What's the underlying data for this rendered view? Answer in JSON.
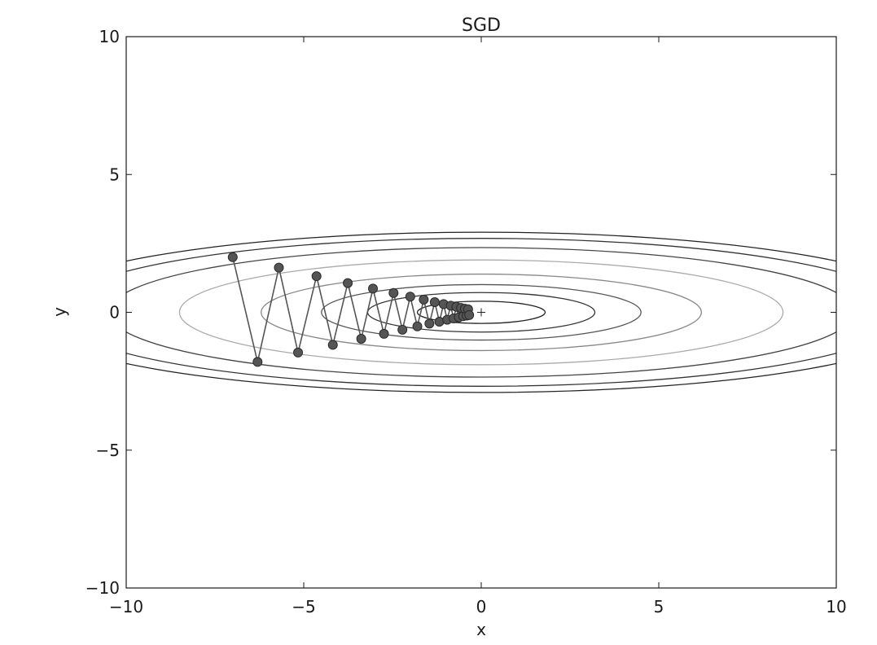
{
  "chart_data": {
    "type": "line",
    "title": "SGD",
    "xlabel": "x",
    "ylabel": "y",
    "xlim": [
      -10,
      10
    ],
    "ylim": [
      -10,
      10
    ],
    "xticks": [
      -10,
      -5,
      0,
      5,
      10
    ],
    "yticks": [
      -10,
      -5,
      0,
      5,
      10
    ],
    "xtick_labels": [
      "−10",
      "−5",
      "0",
      "5",
      "10"
    ],
    "ytick_labels": [
      "−10",
      "−5",
      "0",
      "5",
      "10"
    ],
    "grid": false,
    "legend": "none",
    "minimum_marker": [
      0,
      0
    ],
    "contours": {
      "function": "x^2/20 + y^2",
      "half_widths": [
        1.8,
        3.2,
        4.5,
        6.2,
        8.5,
        10.5,
        12.0,
        13.0
      ]
    },
    "series": [
      {
        "x": [
          -7.0,
          -6.3,
          -5.7,
          -5.16,
          -4.64,
          -4.18,
          -3.76,
          -3.38,
          -3.05,
          -2.74,
          -2.47,
          -2.22,
          -2.0,
          -1.8,
          -1.62,
          -1.46,
          -1.31,
          -1.18,
          -1.06,
          -0.96,
          -0.86,
          -0.78,
          -0.7,
          -0.63,
          -0.57,
          -0.51,
          -0.46,
          -0.41,
          -0.37,
          -0.34
        ],
        "y": [
          2.0,
          -1.8,
          1.62,
          -1.46,
          1.31,
          -1.18,
          1.06,
          -0.96,
          0.86,
          -0.78,
          0.7,
          -0.63,
          0.57,
          -0.51,
          0.46,
          -0.41,
          0.37,
          -0.34,
          0.3,
          -0.27,
          0.24,
          -0.22,
          0.2,
          -0.18,
          0.16,
          -0.14,
          0.13,
          -0.12,
          0.11,
          -0.1
        ]
      }
    ]
  }
}
